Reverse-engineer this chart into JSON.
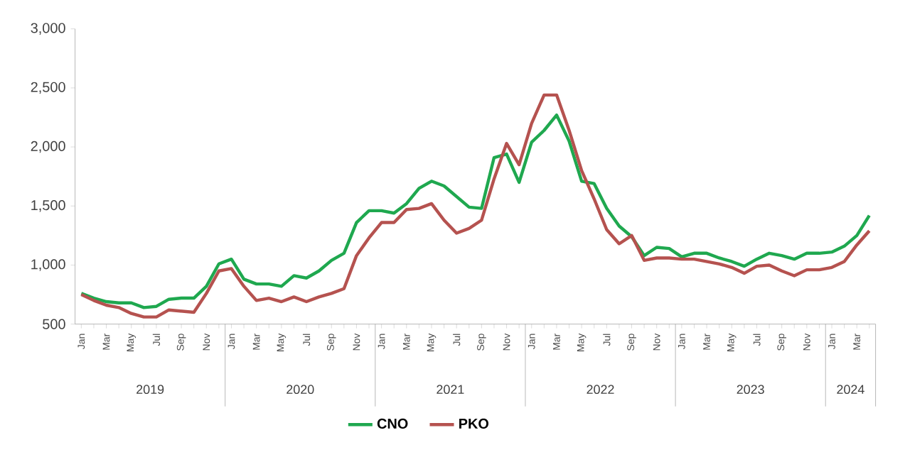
{
  "chart_data": {
    "type": "line",
    "categories": [
      "Jan",
      null,
      "Mar",
      null,
      "May",
      null,
      "Jul",
      null,
      "Sep",
      null,
      "Nov",
      null,
      "Jan",
      null,
      "Mar",
      null,
      "May",
      null,
      "Jul",
      null,
      "Sep",
      null,
      "Nov",
      null,
      "Jan",
      null,
      "Mar",
      null,
      "May",
      null,
      "Jul",
      null,
      "Sep",
      null,
      "Nov",
      null,
      "Jan",
      null,
      "Mar",
      null,
      "May",
      null,
      "Jul",
      null,
      "Sep",
      null,
      "Nov",
      null,
      "Jan",
      null,
      "Mar",
      null,
      "May",
      null,
      "Jul",
      null,
      "Sep",
      null,
      "Nov",
      null,
      "Jan",
      null,
      "Mar",
      null
    ],
    "series": [
      {
        "name": "CNO",
        "color": "#1fa84f",
        "values": [
          760,
          720,
          690,
          680,
          680,
          640,
          650,
          710,
          720,
          720,
          820,
          1010,
          1050,
          880,
          840,
          840,
          820,
          910,
          890,
          950,
          1040,
          1100,
          1360,
          1460,
          1460,
          1440,
          1520,
          1650,
          1710,
          1670,
          1580,
          1490,
          1480,
          1910,
          1940,
          1700,
          2040,
          2140,
          2270,
          2050,
          1710,
          1690,
          1480,
          1330,
          1240,
          1080,
          1150,
          1140,
          1070,
          1100,
          1100,
          1060,
          1030,
          990,
          1050,
          1100,
          1080,
          1050,
          1100,
          1100,
          1110,
          1160,
          1250,
          1420
        ]
      },
      {
        "name": "PKO",
        "color": "#b5524f",
        "values": [
          750,
          700,
          660,
          640,
          590,
          560,
          560,
          620,
          610,
          600,
          760,
          950,
          970,
          820,
          700,
          720,
          690,
          730,
          690,
          730,
          760,
          800,
          1080,
          1230,
          1360,
          1360,
          1470,
          1480,
          1520,
          1380,
          1270,
          1310,
          1380,
          1730,
          2030,
          1850,
          2200,
          2440,
          2440,
          2140,
          1800,
          1560,
          1300,
          1180,
          1250,
          1040,
          1060,
          1060,
          1050,
          1050,
          1030,
          1010,
          980,
          930,
          990,
          1000,
          950,
          910,
          960,
          960,
          980,
          1030,
          1170,
          1290
        ]
      }
    ],
    "annotations": [
      "2019",
      "2020",
      "2021",
      "2022",
      "2023",
      "2024"
    ],
    "ylim": [
      500,
      3000
    ],
    "yticks": [
      500,
      {
        "value": 1000,
        "label": "1,000"
      },
      {
        "value": 1500,
        "label": "1,500"
      },
      {
        "value": 2000,
        "label": "2,000"
      },
      {
        "value": 2500,
        "label": "2,500"
      },
      {
        "value": 3000,
        "label": "3,000"
      }
    ],
    "grid": false,
    "legend": "bottom",
    "marker": "none",
    "line_style": "solid"
  }
}
